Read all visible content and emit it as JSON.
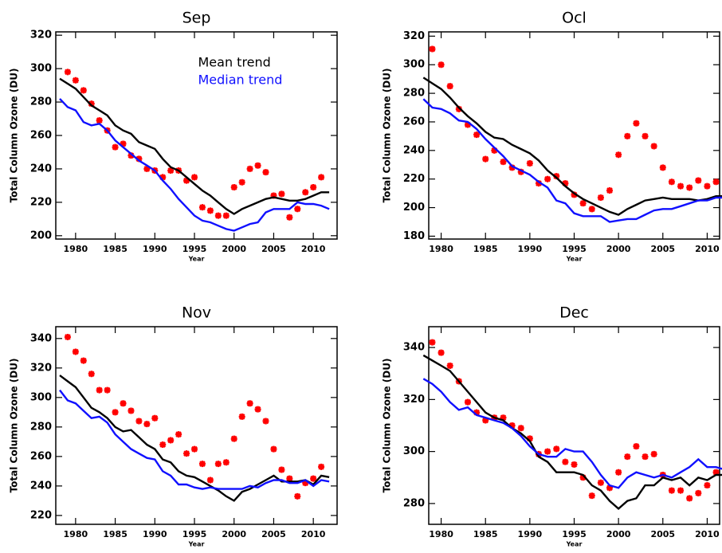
{
  "chart_data": [
    {
      "type": "line",
      "title": "Sep",
      "xlabel": "Year",
      "ylabel": "Total Column Ozone (DU)",
      "xlim": [
        1977.5,
        2013
      ],
      "ylim": [
        198,
        322
      ],
      "xticks": [
        1980,
        1985,
        1990,
        1995,
        2000,
        2005,
        2010
      ],
      "yticks": [
        200,
        220,
        240,
        260,
        280,
        300,
        320
      ],
      "legend": "upper center",
      "series": [
        {
          "type": "scatter",
          "color": "#ff0000",
          "x": [
            1979,
            1980,
            1981,
            1982,
            1983,
            1984,
            1985,
            1986,
            1987,
            1988,
            1989,
            1990,
            1991,
            1992,
            1993,
            1994,
            1995,
            1996,
            1997,
            1998,
            1999,
            2000,
            2001,
            2002,
            2003,
            2004,
            2005,
            2006,
            2007,
            2008,
            2009,
            2010,
            2011
          ],
          "values": [
            298,
            293,
            287,
            279,
            269,
            263,
            253,
            255,
            248,
            246,
            240,
            239,
            235,
            239,
            239,
            233,
            235,
            217,
            215,
            212,
            212,
            229,
            232,
            240,
            242,
            238,
            224,
            225,
            211,
            216,
            226,
            229,
            235
          ]
        },
        {
          "type": "line",
          "name": "Mean trend",
          "color": "#000000",
          "x": [
            1978,
            1979,
            1980,
            1981,
            1982,
            1983,
            1984,
            1985,
            1986,
            1987,
            1988,
            1989,
            1990,
            1991,
            1992,
            1993,
            1994,
            1995,
            1996,
            1997,
            1998,
            1999,
            2000,
            2001,
            2002,
            2003,
            2004,
            2005,
            2006,
            2007,
            2008,
            2009,
            2010,
            2011,
            2012
          ],
          "values": [
            294,
            291,
            288,
            283,
            278,
            275,
            272,
            266,
            263,
            261,
            256,
            254,
            252,
            246,
            241,
            239,
            235,
            231,
            227,
            224,
            220,
            216,
            213,
            216,
            218,
            220,
            222,
            223,
            222,
            221,
            221,
            222,
            224,
            226,
            226
          ]
        },
        {
          "type": "line",
          "name": "Median trend",
          "color": "#1010ff",
          "x": [
            1978,
            1979,
            1980,
            1981,
            1982,
            1983,
            1984,
            1985,
            1986,
            1987,
            1988,
            1989,
            1990,
            1991,
            1992,
            1993,
            1994,
            1995,
            1996,
            1997,
            1998,
            1999,
            2000,
            2001,
            2002,
            2003,
            2004,
            2005,
            2006,
            2007,
            2008,
            2009,
            2010,
            2011,
            2012
          ],
          "values": [
            282,
            277,
            275,
            268,
            266,
            267,
            263,
            257,
            253,
            249,
            245,
            242,
            239,
            233,
            228,
            222,
            217,
            212,
            209,
            208,
            206,
            204,
            203,
            205,
            207,
            208,
            214,
            216,
            216,
            216,
            220,
            219,
            219,
            218,
            216
          ]
        }
      ]
    },
    {
      "type": "line",
      "title": "Ocl",
      "xlabel": "Year",
      "ylabel": "Total Column Ozone (DU)",
      "xlim": [
        1978.6,
        2011.4
      ],
      "ylim": [
        178,
        323
      ],
      "xticks": [
        1980,
        1985,
        1990,
        1995,
        2000,
        2005,
        2010
      ],
      "yticks": [
        180,
        200,
        220,
        240,
        260,
        280,
        300,
        320
      ],
      "series": [
        {
          "type": "scatter",
          "color": "#ff0000",
          "x": [
            1979,
            1980,
            1981,
            1982,
            1983,
            1984,
            1985,
            1986,
            1987,
            1988,
            1989,
            1990,
            1991,
            1992,
            1993,
            1994,
            1995,
            1996,
            1997,
            1998,
            1999,
            2000,
            2001,
            2002,
            2003,
            2004,
            2005,
            2006,
            2007,
            2008,
            2009,
            2010,
            2011
          ],
          "values": [
            311,
            300,
            285,
            269,
            258,
            251,
            234,
            240,
            232,
            228,
            225,
            231,
            217,
            220,
            222,
            217,
            209,
            203,
            199,
            207,
            212,
            237,
            250,
            259,
            250,
            243,
            228,
            218,
            215,
            214,
            219,
            215,
            218
          ]
        },
        {
          "type": "line",
          "color": "#000000",
          "x": [
            1978,
            1979,
            1980,
            1981,
            1982,
            1983,
            1984,
            1985,
            1986,
            1987,
            1988,
            1989,
            1990,
            1991,
            1992,
            1993,
            1994,
            1995,
            1996,
            1997,
            1998,
            1999,
            2000,
            2001,
            2002,
            2003,
            2004,
            2005,
            2006,
            2007,
            2008,
            2009,
            2010,
            2011,
            2012
          ],
          "values": [
            291,
            287,
            283,
            277,
            270,
            264,
            259,
            253,
            249,
            248,
            244,
            241,
            238,
            233,
            226,
            221,
            215,
            210,
            206,
            203,
            200,
            197,
            195,
            199,
            202,
            205,
            206,
            207,
            206,
            206,
            206,
            205,
            206,
            208,
            208
          ]
        },
        {
          "type": "line",
          "color": "#1010ff",
          "x": [
            1978,
            1979,
            1980,
            1981,
            1982,
            1983,
            1984,
            1985,
            1986,
            1987,
            1988,
            1989,
            1990,
            1991,
            1992,
            1993,
            1994,
            1995,
            1996,
            1997,
            1998,
            1999,
            2000,
            2001,
            2002,
            2003,
            2004,
            2005,
            2006,
            2007,
            2008,
            2009,
            2010,
            2011,
            2012
          ],
          "values": [
            276,
            270,
            269,
            266,
            261,
            260,
            255,
            248,
            242,
            236,
            229,
            226,
            223,
            218,
            214,
            205,
            203,
            196,
            194,
            194,
            194,
            190,
            191,
            192,
            192,
            195,
            198,
            199,
            199,
            201,
            203,
            205,
            205,
            207,
            207
          ]
        }
      ]
    },
    {
      "type": "line",
      "title": "Nov",
      "xlabel": "Year",
      "ylabel": "Total Column Ozone (DU)",
      "xlim": [
        1977.5,
        2013
      ],
      "ylim": [
        214,
        348
      ],
      "xticks": [
        1980,
        1985,
        1990,
        1995,
        2000,
        2005,
        2010
      ],
      "yticks": [
        220,
        240,
        260,
        280,
        300,
        320,
        340
      ],
      "series": [
        {
          "type": "scatter",
          "color": "#ff0000",
          "x": [
            1979,
            1980,
            1981,
            1982,
            1983,
            1984,
            1985,
            1986,
            1987,
            1988,
            1989,
            1990,
            1991,
            1992,
            1993,
            1994,
            1995,
            1996,
            1997,
            1998,
            1999,
            2000,
            2001,
            2002,
            2003,
            2004,
            2005,
            2006,
            2007,
            2008,
            2009,
            2010,
            2011
          ],
          "values": [
            341,
            331,
            325,
            316,
            305,
            305,
            290,
            296,
            291,
            284,
            282,
            286,
            268,
            271,
            275,
            262,
            265,
            255,
            244,
            255,
            256,
            272,
            287,
            296,
            292,
            284,
            265,
            251,
            245,
            233,
            242,
            245,
            253
          ]
        },
        {
          "type": "line",
          "color": "#000000",
          "x": [
            1978,
            1979,
            1980,
            1981,
            1982,
            1983,
            1984,
            1985,
            1986,
            1987,
            1988,
            1989,
            1990,
            1991,
            1992,
            1993,
            1994,
            1995,
            1996,
            1997,
            1998,
            1999,
            2000,
            2001,
            2002,
            2003,
            2004,
            2005,
            2006,
            2007,
            2008,
            2009,
            2010,
            2011,
            2012
          ],
          "values": [
            315,
            311,
            307,
            300,
            293,
            290,
            286,
            280,
            277,
            278,
            273,
            268,
            265,
            258,
            256,
            250,
            247,
            246,
            243,
            240,
            237,
            233,
            230,
            236,
            238,
            241,
            244,
            247,
            243,
            243,
            243,
            244,
            241,
            247,
            246
          ]
        },
        {
          "type": "line",
          "color": "#1010ff",
          "x": [
            1978,
            1979,
            1980,
            1981,
            1982,
            1983,
            1984,
            1985,
            1986,
            1987,
            1988,
            1989,
            1990,
            1991,
            1992,
            1993,
            1994,
            1995,
            1996,
            1997,
            1998,
            1999,
            2000,
            2001,
            2002,
            2003,
            2004,
            2005,
            2006,
            2007,
            2008,
            2009,
            2010,
            2011,
            2012
          ],
          "values": [
            305,
            298,
            296,
            291,
            286,
            287,
            283,
            275,
            270,
            265,
            262,
            259,
            258,
            250,
            247,
            241,
            241,
            239,
            238,
            239,
            238,
            238,
            238,
            238,
            240,
            239,
            242,
            244,
            244,
            242,
            242,
            244,
            240,
            244,
            243
          ]
        }
      ]
    },
    {
      "type": "line",
      "title": "Dec",
      "xlabel": "Year",
      "ylabel": "Total Column Ozone (DU)",
      "xlim": [
        1978.6,
        2011.4
      ],
      "ylim": [
        272,
        348
      ],
      "xticks": [
        1980,
        1985,
        1990,
        1995,
        2000,
        2005,
        2010
      ],
      "yticks": [
        280,
        300,
        320,
        340
      ],
      "series": [
        {
          "type": "scatter",
          "color": "#ff0000",
          "x": [
            1979,
            1980,
            1981,
            1982,
            1983,
            1984,
            1985,
            1986,
            1987,
            1988,
            1989,
            1990,
            1991,
            1992,
            1993,
            1994,
            1995,
            1996,
            1997,
            1998,
            1999,
            2000,
            2001,
            2002,
            2003,
            2004,
            2005,
            2006,
            2007,
            2008,
            2009,
            2010,
            2011
          ],
          "values": [
            342,
            338,
            333,
            327,
            319,
            315,
            312,
            313,
            313,
            310,
            309,
            305,
            299,
            300,
            301,
            296,
            295,
            290,
            283,
            288,
            286,
            292,
            298,
            302,
            298,
            299,
            291,
            285,
            285,
            282,
            284,
            287,
            292
          ]
        },
        {
          "type": "line",
          "color": "#000000",
          "x": [
            1978,
            1979,
            1980,
            1981,
            1982,
            1983,
            1984,
            1985,
            1986,
            1987,
            1988,
            1989,
            1990,
            1991,
            1992,
            1993,
            1994,
            1995,
            1996,
            1997,
            1998,
            1999,
            2000,
            2001,
            2002,
            2003,
            2004,
            2005,
            2006,
            2007,
            2008,
            2009,
            2010,
            2011,
            2012
          ],
          "values": [
            337,
            335,
            333,
            331,
            327,
            323,
            319,
            315,
            313,
            312,
            309,
            307,
            304,
            298,
            296,
            292,
            292,
            292,
            291,
            287,
            285,
            281,
            278,
            281,
            282,
            287,
            287,
            290,
            289,
            290,
            287,
            290,
            289,
            291,
            291
          ]
        },
        {
          "type": "line",
          "color": "#1010ff",
          "x": [
            1978,
            1979,
            1980,
            1981,
            1982,
            1983,
            1984,
            1985,
            1986,
            1987,
            1988,
            1989,
            1990,
            1991,
            1992,
            1993,
            1994,
            1995,
            1996,
            1997,
            1998,
            1999,
            2000,
            2001,
            2002,
            2003,
            2004,
            2005,
            2006,
            2007,
            2008,
            2009,
            2010,
            2011,
            2012
          ],
          "values": [
            328,
            326,
            323,
            319,
            316,
            317,
            314,
            313,
            312,
            311,
            309,
            306,
            302,
            299,
            298,
            298,
            301,
            300,
            300,
            296,
            291,
            287,
            286,
            290,
            292,
            291,
            290,
            291,
            290,
            292,
            294,
            297,
            294,
            294,
            293
          ]
        }
      ]
    }
  ]
}
